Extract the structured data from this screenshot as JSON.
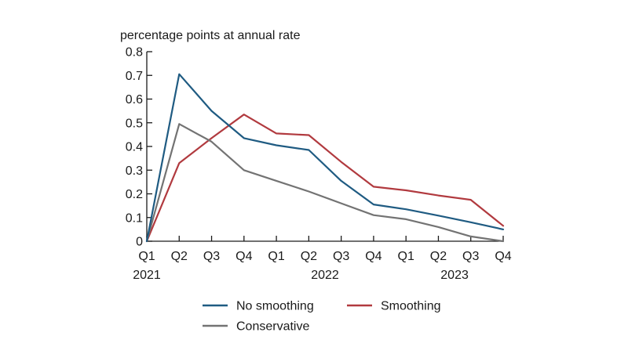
{
  "chart_data": {
    "type": "line",
    "ylabel": "percentage points at annual rate",
    "ylim": [
      0,
      0.8
    ],
    "yticks": [
      0,
      0.1,
      0.2,
      0.3,
      0.4,
      0.5,
      0.6,
      0.7,
      0.8
    ],
    "ytick_labels": [
      "0",
      "0.1",
      "0.2",
      "0.3",
      "0.4",
      "0.5",
      "0.6",
      "0.7",
      "0.8"
    ],
    "categories": [
      "Q1",
      "Q2",
      "Q3",
      "Q4",
      "Q1",
      "Q2",
      "Q3",
      "Q4",
      "Q1",
      "Q2",
      "Q3",
      "Q4"
    ],
    "years": [
      {
        "label": "2021",
        "index": 0
      },
      {
        "label": "2022",
        "index": 5.5
      },
      {
        "label": "2023",
        "index": 9.5
      }
    ],
    "series": [
      {
        "name": "No smoothing",
        "color": "#1f5b82",
        "values": [
          0.0,
          0.705,
          0.55,
          0.435,
          0.405,
          0.385,
          0.255,
          0.155,
          0.135,
          0.108,
          0.08,
          0.05
        ]
      },
      {
        "name": "Smoothing",
        "color": "#b13a3f",
        "values": [
          0.0,
          0.33,
          0.435,
          0.535,
          0.455,
          0.448,
          0.335,
          0.23,
          0.215,
          0.193,
          0.175,
          0.065
        ]
      },
      {
        "name": "Conservative",
        "color": "#737373",
        "values": [
          0.0,
          0.495,
          0.42,
          0.3,
          0.255,
          0.21,
          0.16,
          0.11,
          0.093,
          0.06,
          0.02,
          0.0
        ]
      }
    ],
    "legend_position": "bottom"
  }
}
